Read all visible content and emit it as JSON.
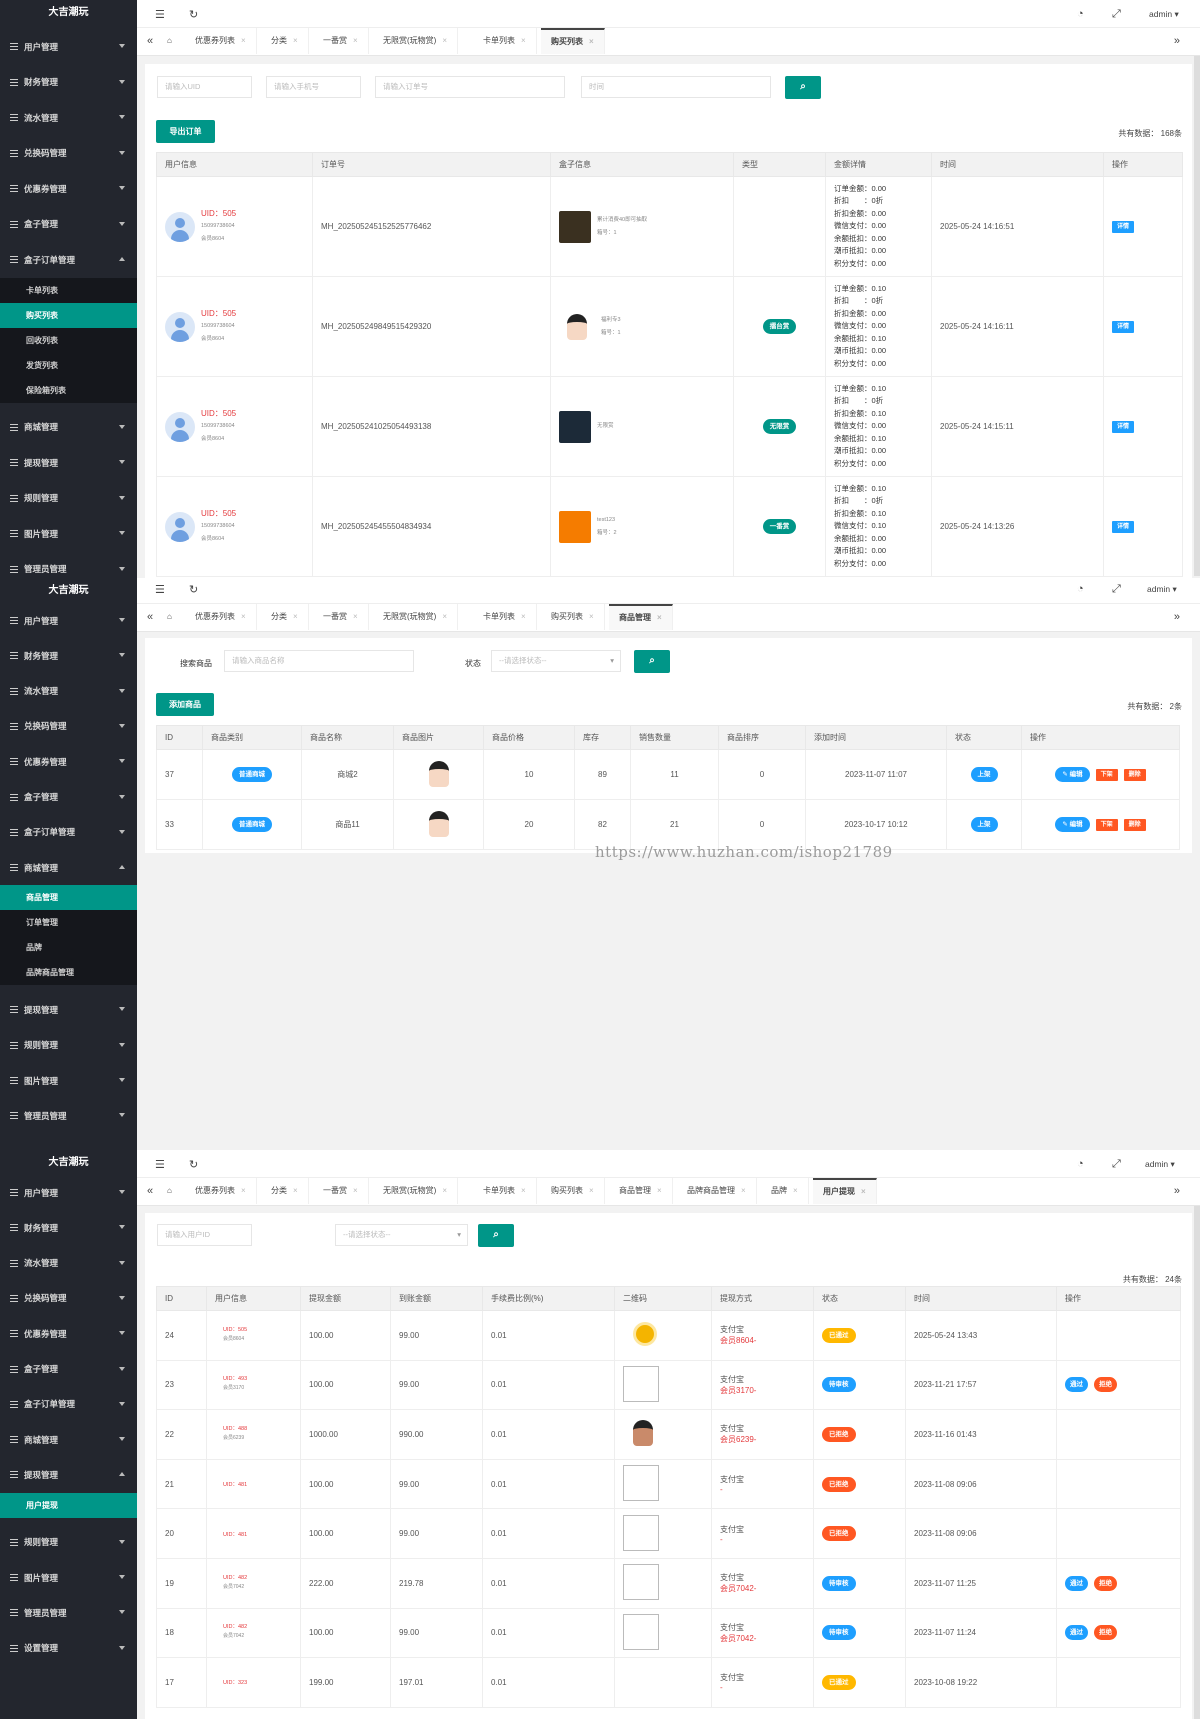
{
  "brand": "大吉潮玩",
  "admin": "admin",
  "panel1": {
    "menus": [
      {
        "label": "用户管理"
      },
      {
        "label": "财务管理"
      },
      {
        "label": "流水管理"
      },
      {
        "label": "兑换码管理"
      },
      {
        "label": "优惠券管理"
      },
      {
        "label": "盒子管理"
      },
      {
        "label": "盒子订单管理",
        "open": true
      }
    ],
    "submenu": [
      "卡单列表",
      "购买列表",
      "回收列表",
      "发货列表",
      "保险箱列表"
    ],
    "submenu_active": 1,
    "menus_after": [
      {
        "label": "商城管理"
      },
      {
        "label": "提现管理"
      },
      {
        "label": "规则管理"
      },
      {
        "label": "图片管理"
      },
      {
        "label": "管理员管理"
      }
    ],
    "tabs": [
      "优惠券列表",
      "分类",
      "一番赏",
      "无限赏(玩物赏)",
      "卡单列表",
      "购买列表"
    ],
    "tab_active": 5,
    "filters": {
      "uid": "请输入UID",
      "phone": "请输入手机号",
      "order": "请输入订单号",
      "time": "时间"
    },
    "export_label": "导出订单",
    "count": "共有数据： 168条",
    "headers": [
      "用户信息",
      "订单号",
      "盒子信息",
      "类型",
      "金额详情",
      "时间",
      "操作"
    ],
    "rows": [
      {
        "uid": "UID：505",
        "phone": "15099738604",
        "nick": "会员8604",
        "order": "MH_20250524515252577646​2",
        "box": "累计消费40即可抽取",
        "boxno": "箱号：1",
        "type": "",
        "amounts": [
          "订单金额：0.00",
          "折扣　　：0折",
          "折扣金额：0.00",
          "微信支付：0.00",
          "余额抵扣：0.00",
          "潮币抵扣：0.00",
          "积分支付：0.00"
        ],
        "time": "2025-05-24 14:16:51",
        "action": "详情",
        "thumb": "#3a3020"
      },
      {
        "uid": "UID：505",
        "phone": "15099738604",
        "nick": "会员8604",
        "order": "MH_20250524984951542932​0",
        "box": "福利专3",
        "boxno": "箱号：1",
        "type": "擂台赏",
        "amounts": [
          "订单金额：0.10",
          "折扣　　：0折",
          "折扣金额：0.00",
          "微信支付：0.00",
          "余额抵扣：0.10",
          "潮币抵扣：0.00",
          "积分支付：0.00"
        ],
        "time": "2025-05-24 14:16:11",
        "action": "详情",
        "thumb": "doll"
      },
      {
        "uid": "UID：505",
        "phone": "15099738604",
        "nick": "会员8604",
        "order": "MH_20250524102505449313​8",
        "box": "无限赏",
        "boxno": "",
        "type": "无限赏",
        "amounts": [
          "订单金额：0.10",
          "折扣　　：0折",
          "折扣金额：0.10",
          "微信支付：0.00",
          "余额抵扣：0.10",
          "潮币抵扣：0.00",
          "积分支付：0.00"
        ],
        "time": "2025-05-24 14:15:11",
        "action": "详情",
        "thumb": "#1c2a38"
      },
      {
        "uid": "UID：505",
        "phone": "15099738604",
        "nick": "会员8604",
        "order": "MH_20250524545550483493​4",
        "box": "test123",
        "boxno": "箱号：2",
        "type": "一番赏",
        "amounts": [
          "订单金额：0.10",
          "折扣　　：0折",
          "折扣金额：0.10",
          "微信支付：0.10",
          "余额抵扣：0.00",
          "潮币抵扣：0.00",
          "积分支付：0.00"
        ],
        "time": "2025-05-24 14:13:26",
        "action": "详情",
        "thumb": "#f57c00"
      }
    ]
  },
  "panel2": {
    "menus": [
      {
        "label": "用户管理"
      },
      {
        "label": "财务管理"
      },
      {
        "label": "流水管理"
      },
      {
        "label": "兑换码管理"
      },
      {
        "label": "优惠券管理"
      },
      {
        "label": "盒子管理"
      },
      {
        "label": "盒子订单管理"
      },
      {
        "label": "商城管理",
        "open": true
      }
    ],
    "submenu": [
      "商品管理",
      "订单管理",
      "品牌",
      "品牌商品管理"
    ],
    "submenu_active": 0,
    "menus_after": [
      {
        "label": "提现管理"
      },
      {
        "label": "规则管理"
      },
      {
        "label": "图片管理"
      },
      {
        "label": "管理员管理"
      }
    ],
    "tabs": [
      "优惠券列表",
      "分类",
      "一番赏",
      "无限赏(玩物赏)",
      "卡单列表",
      "购买列表",
      "商品管理"
    ],
    "tab_active": 6,
    "search_label": "搜索商品",
    "search_ph": "请输入商品名称",
    "status_label": "状态",
    "status_ph": "--请选择状态--",
    "add_label": "添加商品",
    "count": "共有数据： 2条",
    "headers": [
      "ID",
      "商品类别",
      "商品名称",
      "商品图片",
      "商品价格",
      "库存",
      "销售数量",
      "商品排序",
      "添加时间",
      "状态",
      "操作"
    ],
    "rows": [
      {
        "id": "37",
        "cat": "普通商城",
        "name": "商城2",
        "price": "10",
        "stock": "89",
        "sold": "11",
        "sort": "0",
        "time": "2023-11-07 11:07",
        "status": "上架",
        "edit": "编辑",
        "down": "下架",
        "del": "删除"
      },
      {
        "id": "33",
        "cat": "普通商城",
        "name": "商品11",
        "price": "20",
        "stock": "82",
        "sold": "21",
        "sort": "0",
        "time": "2023-10-17 10:12",
        "status": "上架",
        "edit": "编辑",
        "down": "下架",
        "del": "删除"
      }
    ],
    "watermark": "https://www.huzhan.com/ishop21789"
  },
  "panel3": {
    "menus": [
      {
        "label": "用户管理"
      },
      {
        "label": "财务管理"
      },
      {
        "label": "流水管理"
      },
      {
        "label": "兑换码管理"
      },
      {
        "label": "优惠券管理"
      },
      {
        "label": "盒子管理"
      },
      {
        "label": "盒子订单管理"
      },
      {
        "label": "商城管理"
      },
      {
        "label": "提现管理",
        "open": true
      }
    ],
    "submenu": [
      "用户提现"
    ],
    "submenu_active": 0,
    "menus_after": [
      {
        "label": "规则管理"
      },
      {
        "label": "图片管理"
      },
      {
        "label": "管理员管理"
      },
      {
        "label": "设置管理"
      }
    ],
    "tabs": [
      "优惠券列表",
      "分类",
      "一番赏",
      "无限赏(玩物赏)",
      "卡单列表",
      "购买列表",
      "商品管理",
      "品牌商品管理",
      "品牌",
      "用户提现"
    ],
    "tab_active": 9,
    "uid_ph": "请输入用户ID",
    "status_ph": "--请选择状态--",
    "count": "共有数据： 24条",
    "headers": [
      "ID",
      "用户信息",
      "提现金额",
      "到账金额",
      "手续费比例(%)",
      "二维码",
      "提现方式",
      "状态",
      "时间",
      "操作"
    ],
    "rows": [
      {
        "id": "24",
        "uid": "UID：505",
        "nick": "会员8604",
        "amt": "100.00",
        "got": "99.00",
        "fee": "0.01",
        "qr": "coin",
        "method": "支付宝",
        "acct": "会员8604-",
        "status": "已通过",
        "sc": "orange",
        "time": "2025-05-24 13:43",
        "ops": false
      },
      {
        "id": "23",
        "uid": "UID：493",
        "nick": "会员3170",
        "amt": "100.00",
        "got": "99.00",
        "fee": "0.01",
        "qr": "ph",
        "method": "支付宝",
        "acct": "会员3170-",
        "status": "待审核",
        "sc": "blue",
        "time": "2023-11-21 17:57",
        "ops": true
      },
      {
        "id": "22",
        "uid": "UID：488",
        "nick": "会员6239",
        "amt": "1000.00",
        "got": "990.00",
        "fee": "0.01",
        "qr": "doll",
        "method": "支付宝",
        "acct": "会员6239-",
        "status": "已拒绝",
        "sc": "red",
        "time": "2023-11-16 01:43",
        "ops": false
      },
      {
        "id": "21",
        "uid": "UID：481",
        "nick": "",
        "amt": "100.00",
        "got": "99.00",
        "fee": "0.01",
        "qr": "ph",
        "method": "支付宝",
        "acct": "-",
        "status": "已拒绝",
        "sc": "red",
        "time": "2023-11-08 09:06",
        "ops": false
      },
      {
        "id": "20",
        "uid": "UID：481",
        "nick": "",
        "amt": "100.00",
        "got": "99.00",
        "fee": "0.01",
        "qr": "ph",
        "method": "支付宝",
        "acct": "-",
        "status": "已拒绝",
        "sc": "red",
        "time": "2023-11-08 09:06",
        "ops": false
      },
      {
        "id": "19",
        "uid": "UID：482",
        "nick": "会员7042",
        "amt": "222.00",
        "got": "219.78",
        "fee": "0.01",
        "qr": "ph",
        "method": "支付宝",
        "acct": "会员7042-",
        "status": "待审核",
        "sc": "blue",
        "time": "2023-11-07 11:25",
        "ops": true
      },
      {
        "id": "18",
        "uid": "UID：482",
        "nick": "会员7042",
        "amt": "100.00",
        "got": "99.00",
        "fee": "0.01",
        "qr": "ph",
        "method": "支付宝",
        "acct": "会员7042-",
        "status": "待审核",
        "sc": "blue",
        "time": "2023-11-07 11:24",
        "ops": true
      },
      {
        "id": "17",
        "uid": "UID：323",
        "nick": "",
        "amt": "199.00",
        "got": "197.01",
        "fee": "0.01",
        "qr": "none",
        "method": "支付宝",
        "acct": "-",
        "status": "已通过",
        "sc": "orange",
        "time": "2023-10-08 19:22",
        "ops": false
      }
    ],
    "pass": "通过",
    "reject": "拒绝"
  }
}
